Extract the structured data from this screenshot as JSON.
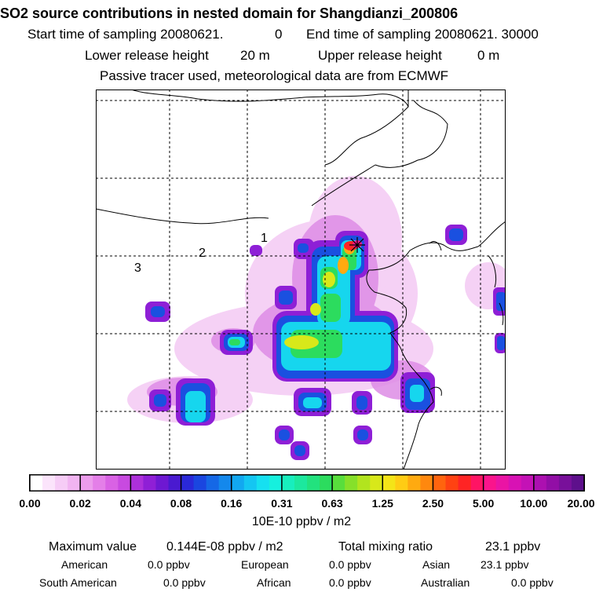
{
  "header": {
    "title": "SO2 source contributions in nested domain for Shangdianzi_200806",
    "start_label": "Start time of sampling 20080621.",
    "start_value": "0",
    "end_label": "End time of sampling 20080621. 30000",
    "lower_label": "Lower release height",
    "lower_value": "20 m",
    "upper_label": "Upper release height",
    "upper_value": "0 m",
    "info": "Passive tracer used, meteorological data are from ECMWF"
  },
  "map": {
    "markers": [
      "1",
      "2",
      "3"
    ],
    "station_symbol": "x-star-icon"
  },
  "colorbar": {
    "labels": [
      "0.00",
      "0.02",
      "0.04",
      "0.08",
      "0.16",
      "0.31",
      "0.63",
      "1.25",
      "2.50",
      "5.00",
      "10.00",
      "20.00"
    ],
    "units": "10E-10 ppbv / m2",
    "colors": [
      "#ffffff",
      "#fbe4fb",
      "#f6ccf6",
      "#f1b4f1",
      "#ec9cec",
      "#e47fe8",
      "#d962e4",
      "#c84ae0",
      "#ad30da",
      "#8f1fd6",
      "#6e18d2",
      "#4a1ad0",
      "#2a28d8",
      "#1a46e0",
      "#1568e6",
      "#1488ec",
      "#12a8f0",
      "#14c6f2",
      "#16e0f0",
      "#16f0de",
      "#18eebe",
      "#1ce89e",
      "#22e27e",
      "#2cdc5e",
      "#58de3c",
      "#86e02a",
      "#b2e41e",
      "#d8e81a",
      "#f4e418",
      "#ffcc14",
      "#ffaa10",
      "#ff880e",
      "#ff640e",
      "#ff4212",
      "#ff2424",
      "#ff1464",
      "#fa148c",
      "#ea14a4",
      "#d812b4",
      "#c412b6",
      "#ac10b0",
      "#920ea6",
      "#78109a",
      "#5e108c"
    ]
  },
  "stats": {
    "max_label": "Maximum value",
    "max_value": "0.144E-08 ppbv / m2",
    "total_label": "Total mixing ratio",
    "total_value": "23.1 ppbv",
    "regions": [
      {
        "name": "American",
        "value": "0.0 ppbv"
      },
      {
        "name": "European",
        "value": "0.0 ppbv"
      },
      {
        "name": "Asian",
        "value": "23.1 ppbv"
      },
      {
        "name": "South American",
        "value": "0.0 ppbv"
      },
      {
        "name": "African",
        "value": "0.0 ppbv"
      },
      {
        "name": "Australian",
        "value": "0.0 ppbv"
      }
    ]
  }
}
